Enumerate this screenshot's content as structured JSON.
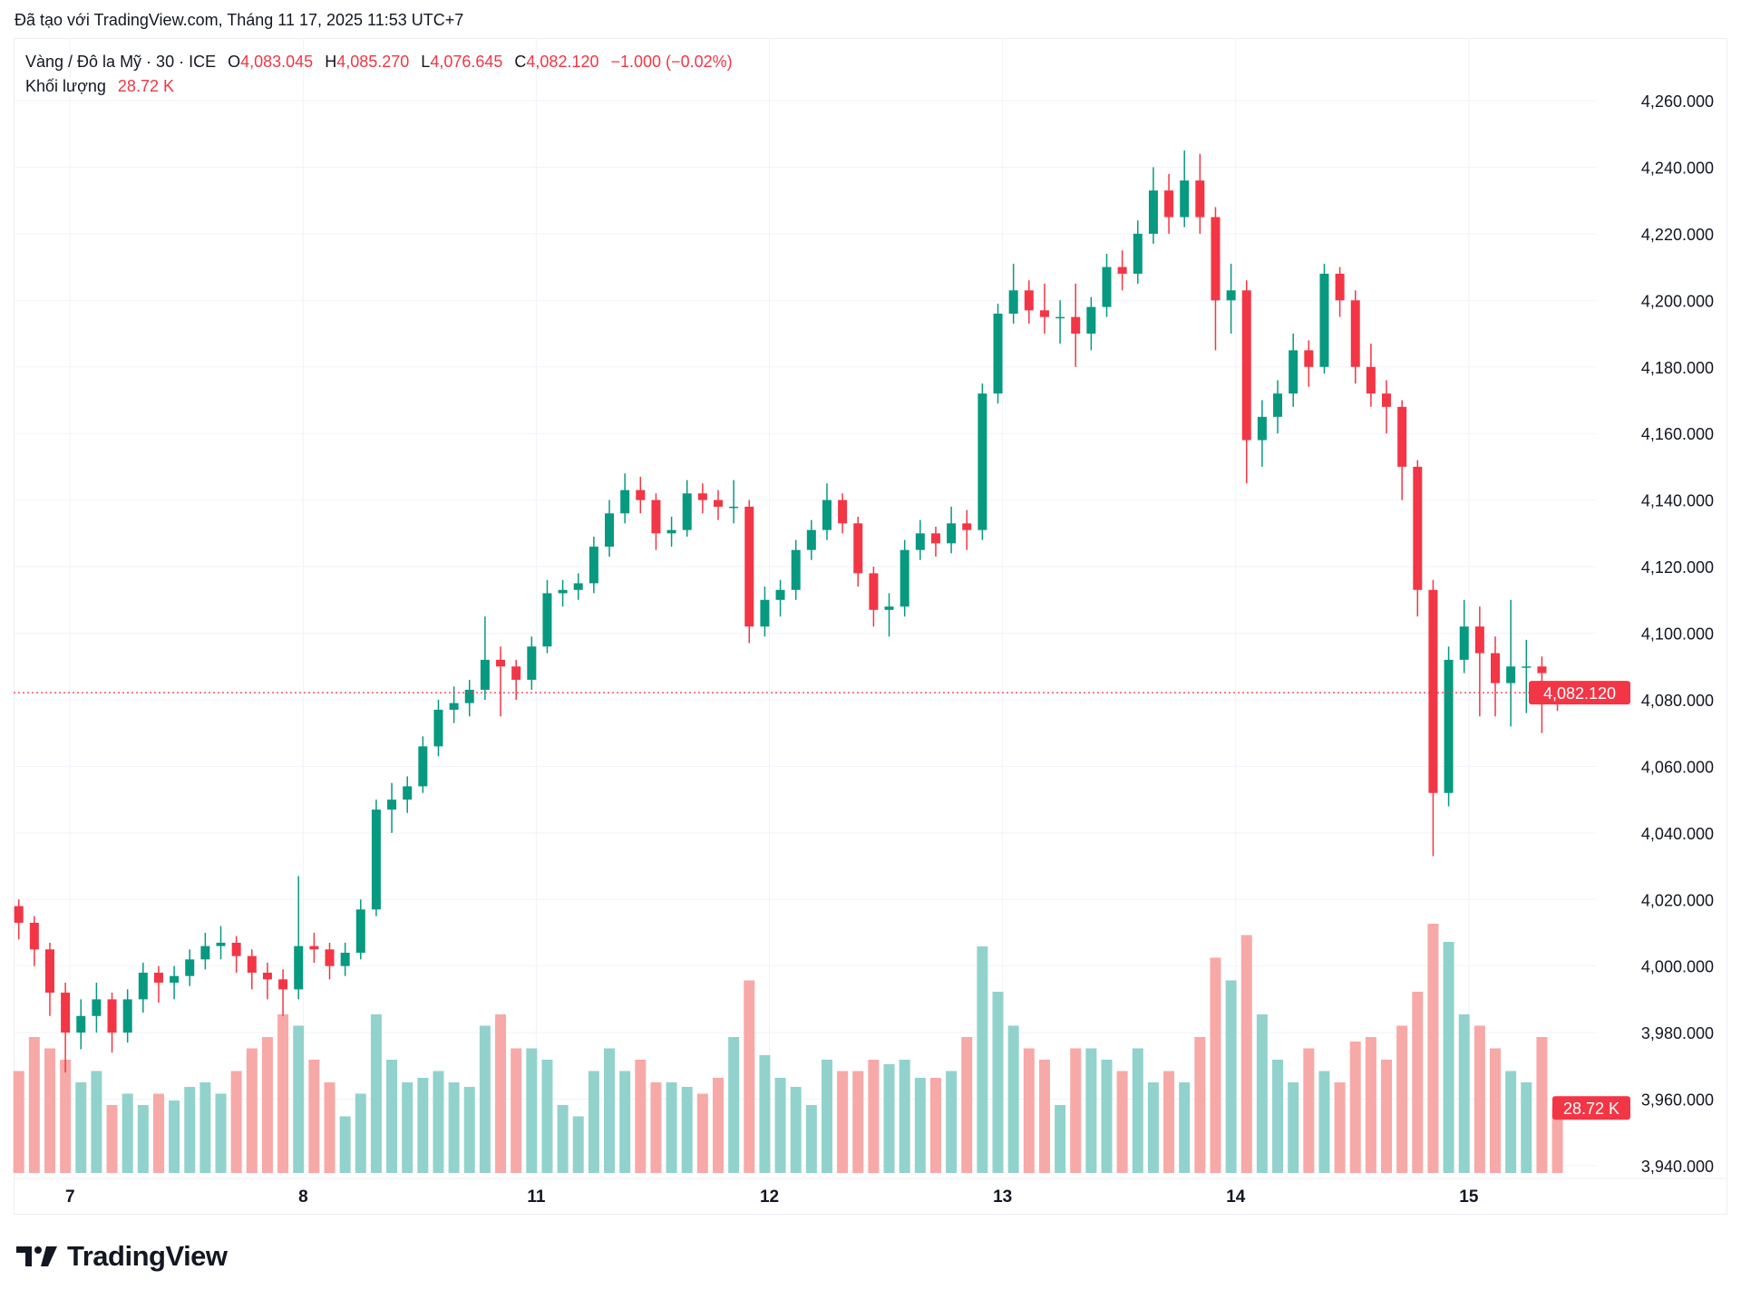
{
  "credit": "Đã tạo với TradingView.com, Tháng 11 17, 2025 11:53 UTC+7",
  "legend": {
    "symbol": "Vàng / Đô la Mỹ · 30 · ICE",
    "o_label": "O",
    "o": "4,083.045",
    "h_label": "H",
    "h": "4,085.270",
    "l_label": "L",
    "l": "4,076.645",
    "c_label": "C",
    "c": "4,082.120",
    "change": "−1.000 (−0.02%)",
    "volume_label": "Khối lượng",
    "volume": "28.72 K"
  },
  "logo": "TradingView",
  "chart_data": {
    "type": "candlestick",
    "interval": "30",
    "ylim": [
      3935,
      4270
    ],
    "y_ticks": [
      "4,260.000",
      "4,240.000",
      "4,220.000",
      "4,200.000",
      "4,180.000",
      "4,160.000",
      "4,140.000",
      "4,120.000",
      "4,100.000",
      "4,080.000",
      "4,060.000",
      "4,040.000",
      "4,020.000",
      "4,000.000",
      "3,980.000",
      "3,960.000",
      "3,940.000"
    ],
    "y_tick_values": [
      4260,
      4240,
      4220,
      4200,
      4180,
      4160,
      4140,
      4120,
      4100,
      4080,
      4060,
      4040,
      4020,
      4000,
      3980,
      3960,
      3940
    ],
    "x_ticks": [
      "7",
      "8",
      "11",
      "12",
      "13",
      "14",
      "15"
    ],
    "x_tick_candle_index": [
      3.3,
      18.3,
      33.3,
      48.3,
      63.3,
      78.3,
      93.3
    ],
    "last_price": 4082.12,
    "last_price_label": "4,082.120",
    "last_volume_label": "28.72 K",
    "grid": true,
    "colors": {
      "up": "#089981",
      "down": "#f23645",
      "vol_up": "#92d2cc",
      "vol_down": "#f7a9a7"
    },
    "candles": [
      [
        4018,
        4020,
        4008,
        4013
      ],
      [
        4013,
        4015,
        4000,
        4005
      ],
      [
        4005,
        4007,
        3985,
        3992
      ],
      [
        3992,
        3995,
        3968,
        3980
      ],
      [
        3980,
        3990,
        3975,
        3985
      ],
      [
        3985,
        3995,
        3980,
        3990
      ],
      [
        3990,
        3992,
        3974,
        3980
      ],
      [
        3980,
        3993,
        3977,
        3990
      ],
      [
        3990,
        4001,
        3986,
        3998
      ],
      [
        3998,
        4000,
        3989,
        3995
      ],
      [
        3995,
        4000,
        3990,
        3997
      ],
      [
        3997,
        4005,
        3994,
        4002
      ],
      [
        4002,
        4010,
        3999,
        4006
      ],
      [
        4006,
        4012,
        4002,
        4007
      ],
      [
        4007,
        4009,
        3998,
        4003
      ],
      [
        4003,
        4005,
        3993,
        3998
      ],
      [
        3998,
        4001,
        3990,
        3996
      ],
      [
        3996,
        3999,
        3985,
        3993
      ],
      [
        3993,
        4027,
        3990,
        4006
      ],
      [
        4006,
        4010,
        4001,
        4005
      ],
      [
        4005,
        4007,
        3996,
        4000
      ],
      [
        4000,
        4007,
        3997,
        4004
      ],
      [
        4004,
        4020,
        4002,
        4017
      ],
      [
        4017,
        4050,
        4015,
        4047
      ],
      [
        4047,
        4055,
        4040,
        4050
      ],
      [
        4050,
        4057,
        4046,
        4054
      ],
      [
        4054,
        4069,
        4052,
        4066
      ],
      [
        4066,
        4080,
        4063,
        4077
      ],
      [
        4077,
        4084,
        4073,
        4079
      ],
      [
        4079,
        4086,
        4075,
        4083
      ],
      [
        4083,
        4105,
        4080,
        4092
      ],
      [
        4092,
        4096,
        4075,
        4090
      ],
      [
        4090,
        4092,
        4080,
        4086
      ],
      [
        4086,
        4099,
        4083,
        4096
      ],
      [
        4096,
        4116,
        4094,
        4112
      ],
      [
        4112,
        4116,
        4108,
        4113
      ],
      [
        4113,
        4118,
        4110,
        4115
      ],
      [
        4115,
        4129,
        4112,
        4126
      ],
      [
        4126,
        4140,
        4123,
        4136
      ],
      [
        4136,
        4148,
        4133,
        4143
      ],
      [
        4143,
        4147,
        4136,
        4140
      ],
      [
        4140,
        4142,
        4125,
        4130
      ],
      [
        4130,
        4135,
        4126,
        4131
      ],
      [
        4131,
        4146,
        4129,
        4142
      ],
      [
        4142,
        4145,
        4136,
        4140
      ],
      [
        4140,
        4143,
        4134,
        4138
      ],
      [
        4138,
        4146,
        4133,
        4138
      ],
      [
        4138,
        4140,
        4097,
        4102
      ],
      [
        4102,
        4114,
        4099,
        4110
      ],
      [
        4110,
        4116,
        4105,
        4113
      ],
      [
        4113,
        4128,
        4110,
        4125
      ],
      [
        4125,
        4134,
        4122,
        4131
      ],
      [
        4131,
        4145,
        4128,
        4140
      ],
      [
        4140,
        4142,
        4130,
        4133
      ],
      [
        4133,
        4135,
        4114,
        4118
      ],
      [
        4118,
        4120,
        4102,
        4107
      ],
      [
        4107,
        4112,
        4099,
        4108
      ],
      [
        4108,
        4128,
        4105,
        4125
      ],
      [
        4125,
        4134,
        4122,
        4130
      ],
      [
        4130,
        4132,
        4123,
        4127
      ],
      [
        4127,
        4138,
        4124,
        4133
      ],
      [
        4133,
        4137,
        4125,
        4131
      ],
      [
        4131,
        4175,
        4128,
        4172
      ],
      [
        4172,
        4199,
        4169,
        4196
      ],
      [
        4196,
        4211,
        4193,
        4203
      ],
      [
        4203,
        4206,
        4193,
        4197
      ],
      [
        4197,
        4205,
        4190,
        4195
      ],
      [
        4195,
        4200,
        4187,
        4195
      ],
      [
        4195,
        4205,
        4180,
        4190
      ],
      [
        4190,
        4201,
        4185,
        4198
      ],
      [
        4198,
        4214,
        4195,
        4210
      ],
      [
        4210,
        4215,
        4203,
        4208
      ],
      [
        4208,
        4224,
        4205,
        4220
      ],
      [
        4220,
        4240,
        4217,
        4233
      ],
      [
        4233,
        4238,
        4220,
        4225
      ],
      [
        4225,
        4245,
        4222,
        4236
      ],
      [
        4236,
        4244,
        4220,
        4225
      ],
      [
        4225,
        4228,
        4185,
        4200
      ],
      [
        4200,
        4211,
        4190,
        4203
      ],
      [
        4203,
        4206,
        4145,
        4158
      ],
      [
        4158,
        4170,
        4150,
        4165
      ],
      [
        4165,
        4176,
        4160,
        4172
      ],
      [
        4172,
        4190,
        4168,
        4185
      ],
      [
        4185,
        4188,
        4174,
        4180
      ],
      [
        4180,
        4211,
        4178,
        4208
      ],
      [
        4208,
        4210,
        4195,
        4200
      ],
      [
        4200,
        4203,
        4175,
        4180
      ],
      [
        4180,
        4187,
        4168,
        4172
      ],
      [
        4172,
        4176,
        4160,
        4168
      ],
      [
        4168,
        4170,
        4140,
        4150
      ],
      [
        4150,
        4152,
        4105,
        4113
      ],
      [
        4113,
        4116,
        4033,
        4052
      ],
      [
        4052,
        4096,
        4048,
        4092
      ],
      [
        4092,
        4110,
        4088,
        4102
      ],
      [
        4102,
        4108,
        4075,
        4094
      ],
      [
        4094,
        4099,
        4075,
        4085
      ],
      [
        4085,
        4110,
        4072,
        4090
      ],
      [
        4090,
        4098,
        4076,
        4090
      ],
      [
        4090,
        4093,
        4070,
        4088
      ],
      [
        4083.045,
        4085.27,
        4076.645,
        4082.12
      ]
    ],
    "volume_k": [
      45,
      60,
      55,
      50,
      40,
      45,
      30,
      35,
      30,
      35,
      32,
      38,
      40,
      35,
      45,
      55,
      60,
      70,
      65,
      50,
      40,
      25,
      35,
      70,
      50,
      40,
      42,
      45,
      40,
      38,
      65,
      70,
      55,
      55,
      50,
      30,
      25,
      45,
      55,
      45,
      50,
      40,
      40,
      38,
      35,
      42,
      60,
      85,
      52,
      42,
      38,
      30,
      50,
      45,
      45,
      50,
      48,
      50,
      42,
      42,
      45,
      60,
      100,
      80,
      65,
      55,
      50,
      30,
      55,
      55,
      50,
      45,
      55,
      40,
      45,
      40,
      60,
      95,
      85,
      105,
      70,
      50,
      40,
      55,
      45,
      40,
      58,
      60,
      50,
      65,
      80,
      110,
      102,
      70,
      65,
      55,
      45,
      40,
      60,
      28.72
    ]
  }
}
